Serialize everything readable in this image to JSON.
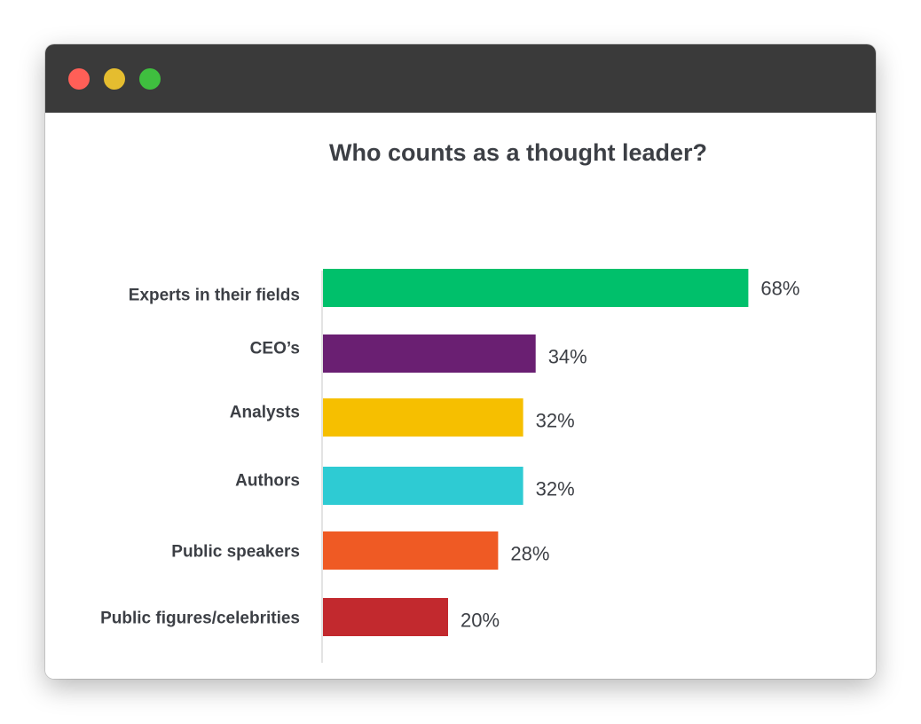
{
  "window": {
    "controls": {
      "close_color": "#ff5f57",
      "minimize_color": "#e5bd2f",
      "zoom_color": "#3fbf3f"
    }
  },
  "chart_data": {
    "type": "bar",
    "orientation": "horizontal",
    "title": "Who counts as a thought leader?",
    "categories": [
      "Experts in their fields",
      "CEO’s",
      "Analysts",
      "Authors",
      "Public speakers",
      "Public figures/celebrities"
    ],
    "values": [
      68,
      34,
      32,
      32,
      28,
      20
    ],
    "value_labels": [
      "68%",
      "34%",
      "32%",
      "32%",
      "28%",
      "20%"
    ],
    "colors": [
      "#00c06b",
      "#6a1f72",
      "#f6bf00",
      "#2ecbd3",
      "#ef5a24",
      "#c2292e"
    ],
    "xlim": [
      0,
      100
    ],
    "grid": false,
    "legend": "none"
  }
}
